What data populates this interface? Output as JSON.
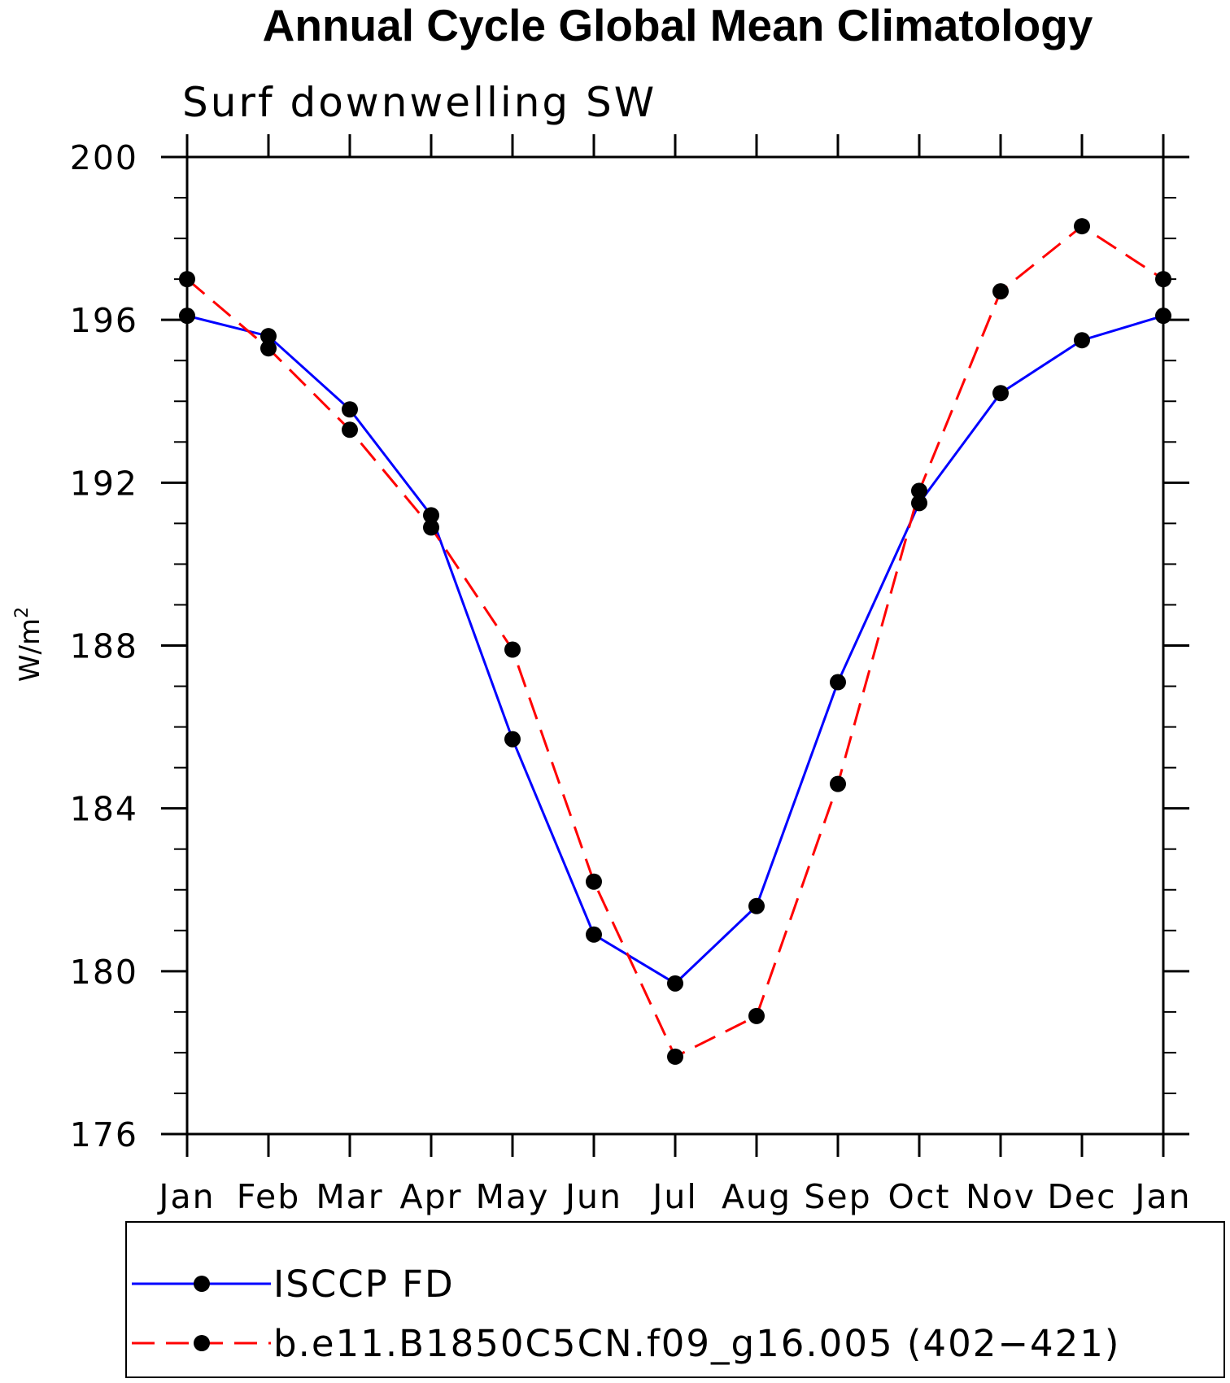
{
  "chart_data": {
    "type": "line",
    "title": "Annual Cycle Global Mean Climatology",
    "subtitle": "Surf downwelling SW",
    "xlabel": "",
    "ylabel": "W/m",
    "ylabel_superscript": "2",
    "categories": [
      "Jan",
      "Feb",
      "Mar",
      "Apr",
      "May",
      "Jun",
      "Jul",
      "Aug",
      "Sep",
      "Oct",
      "Nov",
      "Dec",
      "Jan"
    ],
    "ylim": [
      176,
      200
    ],
    "yticks": [
      176,
      180,
      184,
      188,
      192,
      196,
      200
    ],
    "ytick_labels": [
      "176",
      "180",
      "184",
      "188",
      "192",
      "196",
      "200"
    ],
    "series": [
      {
        "name": "ISCCP FD",
        "color": "#0000ff",
        "dash": "solid",
        "marker": "filled-circle",
        "values": [
          196.1,
          195.6,
          193.8,
          191.2,
          185.7,
          180.9,
          179.7,
          181.6,
          187.1,
          191.5,
          194.2,
          195.5,
          196.1
        ]
      },
      {
        "name": "b.e11.B1850C5CN.f09_g16.005 (402−421)",
        "color": "#ff0000",
        "dash": "dashed",
        "marker": "filled-circle",
        "values": [
          197.0,
          195.3,
          193.3,
          190.9,
          187.9,
          182.2,
          177.9,
          178.9,
          184.6,
          191.8,
          196.7,
          198.3,
          197.0
        ]
      }
    ],
    "legend_position": "bottom",
    "grid": false
  }
}
